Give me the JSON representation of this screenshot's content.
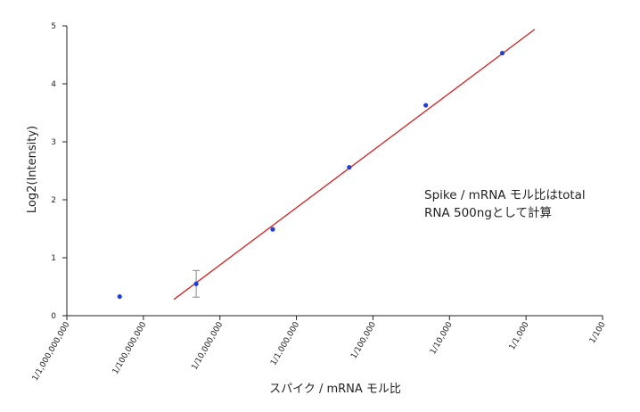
{
  "chart_data": {
    "type": "scatter",
    "title": "",
    "xlabel": "スパイク / mRNA モル比",
    "ylabel": "Log2(Intensity)",
    "x_scale": "log",
    "xlim": [
      1e-09,
      0.01
    ],
    "ylim": [
      0,
      5
    ],
    "grid": false,
    "x_tick_labels": [
      "1/1,000,000,000",
      "1/100,000,000",
      "1/10,000,000",
      "1/1,000,000",
      "1/100,000",
      "1/10,000",
      "1/1,000",
      "1/100"
    ],
    "y_tick_labels": [
      "0",
      "1",
      "2",
      "3",
      "4",
      "5"
    ],
    "series": [
      {
        "color": "#1f3fd6",
        "points": [
          {
            "x": 4.9e-09,
            "y": 0.33
          },
          {
            "x": 4.9e-08,
            "y": 0.55,
            "y_err": 0.23
          },
          {
            "x": 4.9e-07,
            "y": 1.49
          },
          {
            "x": 4.9e-06,
            "y": 2.56
          },
          {
            "x": 4.9e-05,
            "y": 3.63
          },
          {
            "x": 0.00049,
            "y": 4.53
          }
        ]
      }
    ],
    "fit_line": {
      "color": "#d42020",
      "start": {
        "x": 2.5e-08,
        "y": 0.28
      },
      "end": {
        "x": 0.0013,
        "y": 4.94
      }
    },
    "annotation": [
      "Spike / mRNA モル比はtotal",
      "RNA 500ngとして計算"
    ]
  }
}
